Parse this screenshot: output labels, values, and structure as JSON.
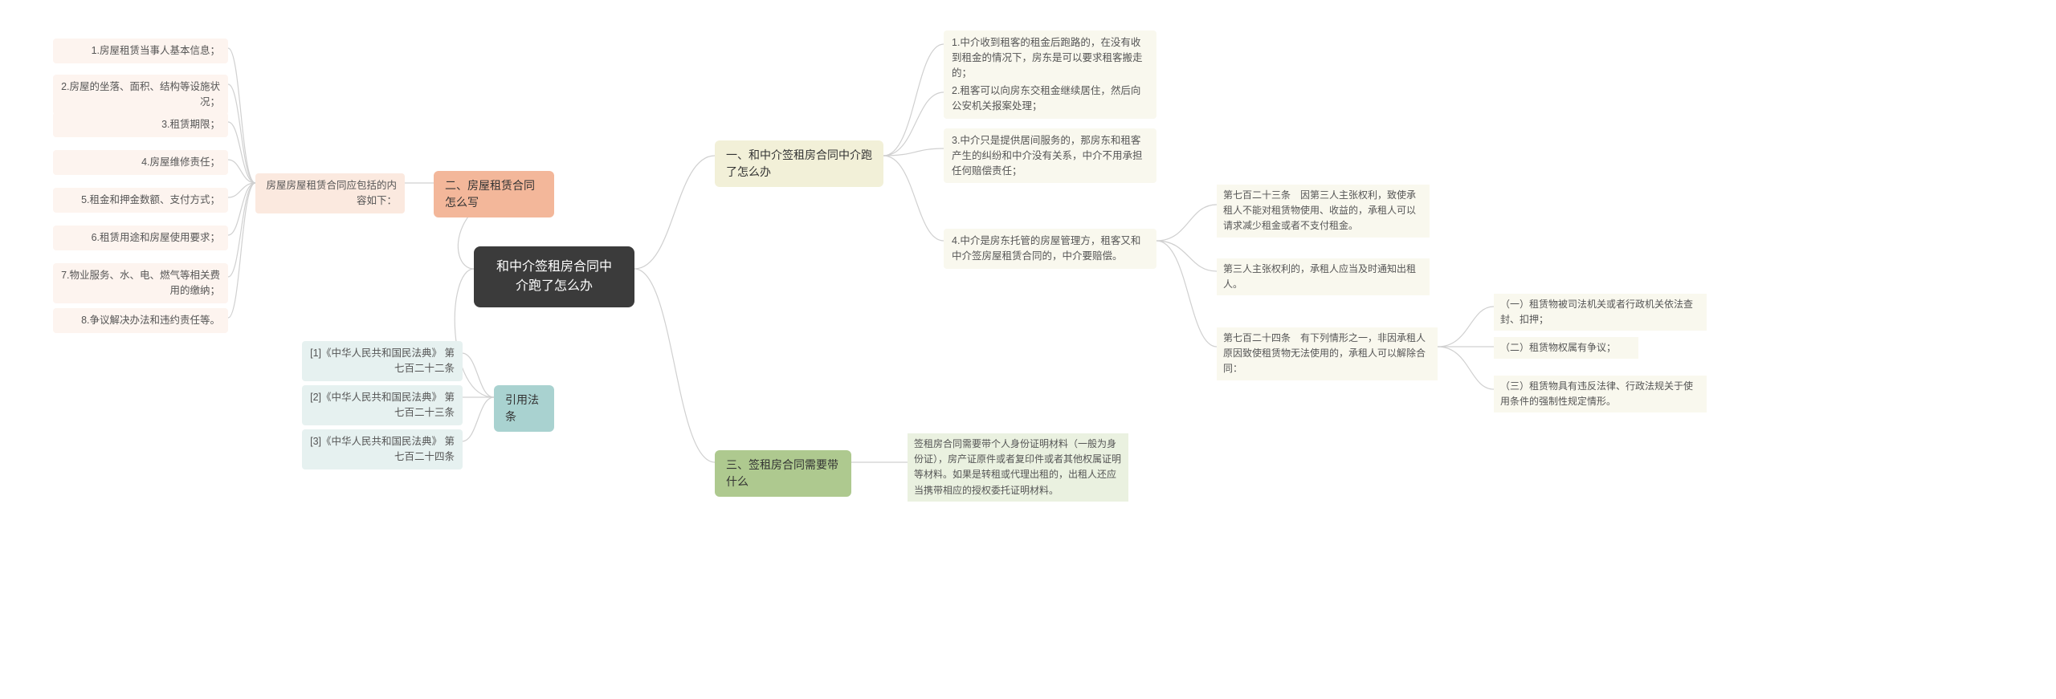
{
  "colors": {
    "root_bg": "#3b3b3b",
    "root_fg": "#ffffff",
    "b1_bg": "#f2f0d8",
    "b1_sub_bg": "#f9f8ee",
    "b2_bg": "#f3b79a",
    "b2_sub_bg": "#fbe9df",
    "b2_leaf_bg": "#fdf4ef",
    "b3_bg": "#aec98f",
    "b3_sub_bg": "#eaf1e0",
    "b4_bg": "#a9d2d0",
    "b4_sub_bg": "#e6f1f0",
    "connector": "#d0d0d0"
  },
  "root": {
    "text": "和中介签租房合同中介跑了怎么办"
  },
  "right": {
    "b1": {
      "label": "一、和中介签租房合同中介跑了怎么办",
      "items": [
        "1.中介收到租客的租金后跑路的，在没有收到租金的情况下，房东是可以要求租客搬走的；",
        "2.租客可以向房东交租金继续居住，然后向公安机关报案处理；",
        "3.中介只是提供居间服务的，那房东和租客产生的纠纷和中介没有关系，中介不用承担任何赔偿责任；",
        "4.中介是房东托管的房屋管理方，租客又和中介签房屋租赁合同的，中介要赔偿。"
      ],
      "sub4": {
        "a": "第七百二十三条　因第三人主张权利，致使承租人不能对租赁物使用、收益的，承租人可以请求减少租金或者不支付租金。",
        "b": "第三人主张权利的，承租人应当及时通知出租人。",
        "c": "第七百二十四条　有下列情形之一，非因承租人原因致使租赁物无法使用的，承租人可以解除合同：",
        "c_items": [
          "（一）租赁物被司法机关或者行政机关依法查封、扣押；",
          "（二）租赁物权属有争议；",
          "（三）租赁物具有违反法律、行政法规关于使用条件的强制性规定情形。"
        ]
      }
    },
    "b3": {
      "label": "三、签租房合同需要带什么",
      "note": "签租房合同需要带个人身份证明材料（一般为身份证），房产证原件或者复印件或者其他权属证明等材料。如果是转租或代理出租的，出租人还应当携带相应的授权委托证明材料。"
    }
  },
  "left": {
    "b2": {
      "label": "二、房屋租赁合同怎么写",
      "sub": "房屋房屋租赁合同应包括的内容如下：",
      "items": [
        "1.房屋租赁当事人基本信息；",
        "2.房屋的坐落、面积、结构等设施状况；",
        "3.租赁期限；",
        "4.房屋维修责任；",
        "5.租金和押金数额、支付方式；",
        "6.租赁用途和房屋使用要求；",
        "7.物业服务、水、电、燃气等相关费用的缴纳；",
        "8.争议解决办法和违约责任等。"
      ]
    },
    "b4": {
      "label": "引用法条",
      "items": [
        "[1]《中华人民共和国民法典》 第七百二十二条",
        "[2]《中华人民共和国民法典》 第七百二十三条",
        "[3]《中华人民共和国民法典》 第七百二十四条"
      ]
    }
  }
}
